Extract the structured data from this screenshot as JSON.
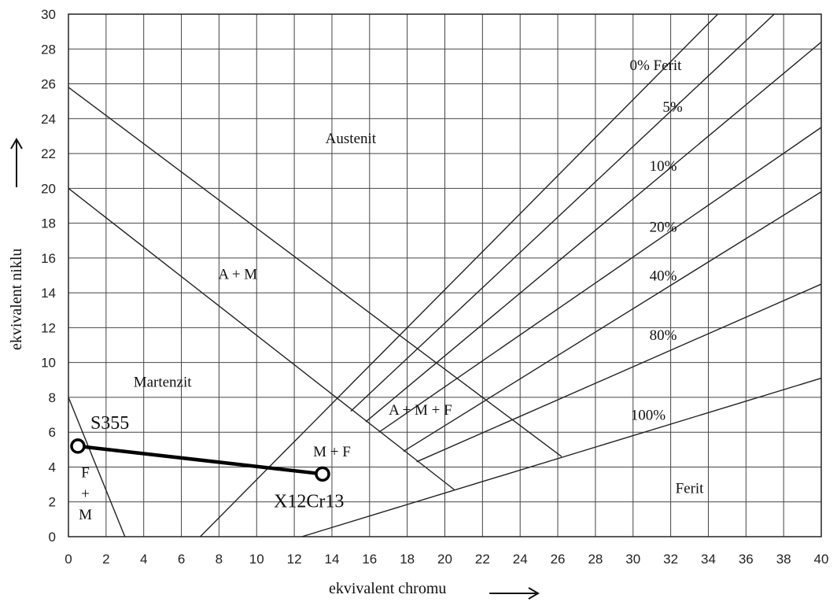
{
  "chart_data": {
    "type": "line",
    "title": "",
    "xlabel": "ekvivalent chromu",
    "ylabel": "ekvivalent niklu",
    "xlim": [
      0,
      40
    ],
    "ylim": [
      0,
      30
    ],
    "x_ticks": [
      0,
      2,
      4,
      6,
      8,
      10,
      12,
      14,
      16,
      18,
      20,
      22,
      24,
      26,
      28,
      30,
      32,
      34,
      36,
      38,
      40
    ],
    "y_ticks": [
      0,
      2,
      4,
      6,
      8,
      10,
      12,
      14,
      16,
      18,
      20,
      22,
      24,
      26,
      28,
      30
    ],
    "grid": true,
    "boundary_lines": [
      {
        "points": [
          [
            0,
            8
          ],
          [
            3,
            0
          ]
        ]
      },
      {
        "points": [
          [
            0,
            20
          ],
          [
            20.5,
            2.7
          ]
        ]
      },
      {
        "points": [
          [
            0,
            25.8
          ],
          [
            26.2,
            4.6
          ]
        ]
      },
      {
        "points": [
          [
            7,
            0
          ],
          [
            34.5,
            30
          ]
        ]
      },
      {
        "points": [
          [
            15,
            7.2
          ],
          [
            37.5,
            30
          ]
        ]
      },
      {
        "points": [
          [
            15.8,
            6.6
          ],
          [
            40,
            28.4
          ]
        ]
      },
      {
        "points": [
          [
            16.5,
            6.0
          ],
          [
            40,
            23.5
          ]
        ]
      },
      {
        "points": [
          [
            17.8,
            4.9
          ],
          [
            40,
            19.8
          ]
        ]
      },
      {
        "points": [
          [
            18.5,
            4.3
          ],
          [
            40,
            14.5
          ]
        ]
      },
      {
        "points": [
          [
            12.4,
            0
          ],
          [
            40,
            9.1
          ]
        ]
      }
    ],
    "ferrite_labels": [
      {
        "text": "0% Ferit",
        "x": 31.2,
        "y": 26.8
      },
      {
        "text": "5%",
        "x": 32.1,
        "y": 24.4
      },
      {
        "text": "10%",
        "x": 31.6,
        "y": 21.0
      },
      {
        "text": "20%",
        "x": 31.6,
        "y": 17.5
      },
      {
        "text": "40%",
        "x": 31.6,
        "y": 14.7
      },
      {
        "text": "80%",
        "x": 31.6,
        "y": 11.3
      },
      {
        "text": "100%",
        "x": 30.8,
        "y": 6.7
      }
    ],
    "region_labels": [
      {
        "text": "Austenit",
        "x": 15.0,
        "y": 22.6
      },
      {
        "text": "A + M",
        "x": 9.0,
        "y": 14.8
      },
      {
        "text": "Martenzit",
        "x": 5.0,
        "y": 8.6
      },
      {
        "text": "A + M + F",
        "x": 18.7,
        "y": 7.0
      },
      {
        "text": "M + F",
        "x": 14.0,
        "y": 4.6
      },
      {
        "text": "Ferit",
        "x": 33.0,
        "y": 2.5
      },
      {
        "text": "F",
        "x": 0.9,
        "y": 3.4
      },
      {
        "text": "+",
        "x": 0.9,
        "y": 2.2
      },
      {
        "text": "M",
        "x": 0.9,
        "y": 1.0
      }
    ],
    "points": [
      {
        "label": "S355",
        "x": 0.5,
        "y": 5.2
      },
      {
        "label": "X12Cr13",
        "x": 13.5,
        "y": 3.6
      }
    ],
    "connection": {
      "from": "S355",
      "to": "X12Cr13"
    }
  }
}
